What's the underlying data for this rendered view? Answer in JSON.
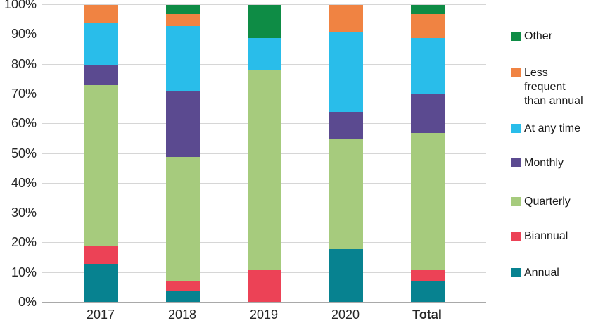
{
  "chart_data": {
    "type": "bar",
    "stacked": true,
    "units": "percent",
    "title": "",
    "xlabel": "",
    "ylabel": "",
    "ylim": [
      0,
      100
    ],
    "grid": true,
    "legend_position": "right",
    "categories": [
      {
        "label": "2017",
        "bold": false
      },
      {
        "label": "2018",
        "bold": false
      },
      {
        "label": "2019",
        "bold": false
      },
      {
        "label": "2020",
        "bold": false
      },
      {
        "label": "Total",
        "bold": true
      }
    ],
    "series": [
      {
        "name": "Annual",
        "color": "#078290",
        "values": [
          13,
          4,
          0,
          18,
          7
        ]
      },
      {
        "name": "Biannual",
        "color": "#ec4256",
        "values": [
          6,
          3,
          11,
          0,
          4
        ]
      },
      {
        "name": "Quarterly",
        "color": "#a6cb7d",
        "values": [
          54,
          42,
          67,
          37,
          46
        ]
      },
      {
        "name": "Monthly",
        "color": "#5b4a90",
        "values": [
          7,
          22,
          0,
          9,
          13
        ]
      },
      {
        "name": "At any time",
        "color": "#29bdea",
        "values": [
          14,
          22,
          11,
          27,
          19
        ]
      },
      {
        "name": "Less frequent than annual",
        "color": "#f08342",
        "values": [
          6,
          4,
          0,
          9,
          8
        ]
      },
      {
        "name": "Other",
        "color": "#0e8c45",
        "values": [
          0,
          3,
          11,
          0,
          3
        ]
      }
    ],
    "y_axis": {
      "ticks": [
        "0%",
        "10%",
        "20%",
        "30%",
        "40%",
        "50%",
        "60%",
        "70%",
        "80%",
        "90%",
        "100%"
      ]
    },
    "legend_order_top_to_bottom": [
      "Other",
      "Less frequent than annual",
      "At any time",
      "Monthly",
      "Quarterly",
      "Biannual",
      "Annual"
    ]
  }
}
